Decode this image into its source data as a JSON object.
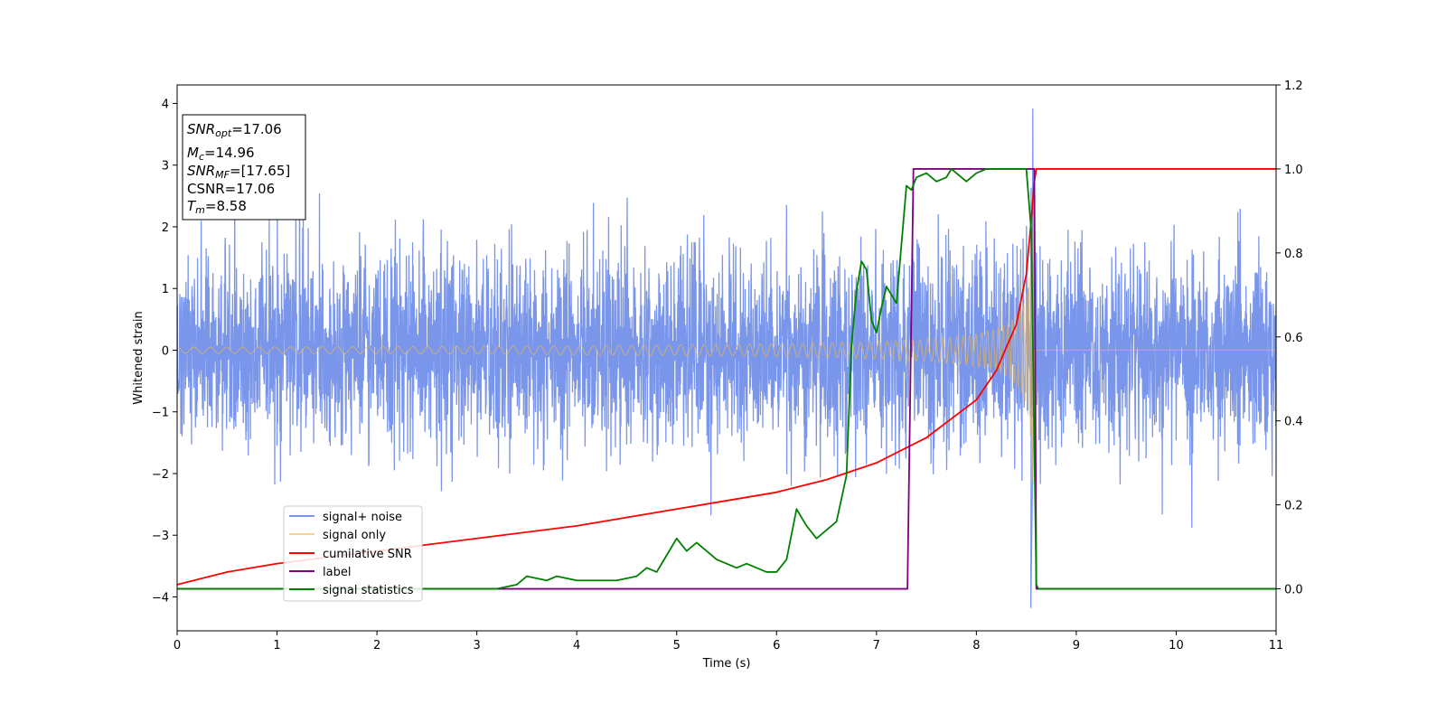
{
  "chart_data": {
    "type": "line",
    "xlabel": "Time (s)",
    "ylabel": "Whitened strain",
    "xlim": [
      0,
      11
    ],
    "ylim_left": [
      -4.55,
      4.3
    ],
    "ylim_right": [
      -0.1,
      1.2
    ],
    "x_ticks": [
      0,
      1,
      2,
      3,
      4,
      5,
      6,
      7,
      8,
      9,
      10,
      11
    ],
    "y_ticks_left": [
      -4,
      -3,
      -2,
      -1,
      0,
      1,
      2,
      3,
      4
    ],
    "y_ticks_right": [
      "0.0",
      "0.2",
      "0.4",
      "0.6",
      "0.8",
      "1.0",
      "1.2"
    ],
    "grid": false,
    "legend_position": "lower-left",
    "info_box": {
      "snr_opt_main": "SNR",
      "snr_opt_sub": "opt",
      "snr_opt_value": "=17.06",
      "mc_main": "M",
      "mc_sub": "c",
      "mc_value": "=14.96",
      "snr_mf_main": "SNR",
      "snr_mf_sub": "MF",
      "snr_mf_value": "=[17.65]",
      "csnr_text": "CSNR=17.06",
      "tm_main": "T",
      "tm_sub": "m",
      "tm_value": "=8.58"
    },
    "series": [
      {
        "name": "signal+ noise",
        "color": "#4169e1",
        "axis": "left",
        "merger_time": 8.58,
        "noise_std": 0.8,
        "peak_max": 3.92,
        "peak_min": -4.18
      },
      {
        "name": "signal only",
        "color": "#f4b942",
        "axis": "left",
        "start_amplitude": 0.05,
        "peak_amplitude": 2.2,
        "merger_time": 8.58
      },
      {
        "name": "cumilative SNR",
        "color": "#ff0000",
        "axis": "right",
        "x": [
          0,
          0.5,
          1,
          2,
          3,
          4,
          5,
          6,
          6.5,
          7,
          7.5,
          8,
          8.2,
          8.4,
          8.5,
          8.55,
          8.58,
          8.6,
          11
        ],
        "y": [
          0.01,
          0.04,
          0.06,
          0.09,
          0.12,
          0.15,
          0.19,
          0.23,
          0.26,
          0.3,
          0.36,
          0.45,
          0.52,
          0.63,
          0.75,
          0.88,
          0.97,
          1.0,
          1.0
        ]
      },
      {
        "name": "label",
        "color": "#800080",
        "axis": "right",
        "x": [
          0,
          7.31,
          7.37,
          8.58,
          8.6,
          11
        ],
        "y": [
          0,
          0,
          1,
          1,
          0,
          0
        ]
      },
      {
        "name": "signal statistics",
        "color": "#008000",
        "axis": "right",
        "x": [
          0,
          3.2,
          3.4,
          3.5,
          3.7,
          3.8,
          4.0,
          4.2,
          4.4,
          4.6,
          4.7,
          4.8,
          4.9,
          5.0,
          5.1,
          5.2,
          5.3,
          5.4,
          5.5,
          5.6,
          5.7,
          5.8,
          5.9,
          6.0,
          6.1,
          6.2,
          6.3,
          6.4,
          6.5,
          6.6,
          6.7,
          6.75,
          6.8,
          6.85,
          6.9,
          6.95,
          7.0,
          7.05,
          7.1,
          7.15,
          7.2,
          7.3,
          7.35,
          7.4,
          7.5,
          7.6,
          7.7,
          7.75,
          7.8,
          7.9,
          8.0,
          8.1,
          8.2,
          8.3,
          8.4,
          8.5,
          8.55,
          8.6,
          8.62,
          11
        ],
        "y": [
          0,
          0.0,
          0.01,
          0.03,
          0.02,
          0.03,
          0.02,
          0.02,
          0.02,
          0.03,
          0.05,
          0.04,
          0.08,
          0.12,
          0.09,
          0.11,
          0.09,
          0.07,
          0.06,
          0.05,
          0.06,
          0.05,
          0.04,
          0.04,
          0.07,
          0.19,
          0.15,
          0.12,
          0.14,
          0.16,
          0.27,
          0.58,
          0.71,
          0.78,
          0.76,
          0.64,
          0.61,
          0.67,
          0.72,
          0.7,
          0.68,
          0.96,
          0.95,
          0.98,
          0.99,
          0.97,
          0.98,
          1.0,
          0.99,
          0.97,
          0.99,
          1.0,
          1.0,
          1.0,
          1.0,
          1.0,
          0.85,
          0.01,
          0.0,
          0.0
        ]
      }
    ]
  }
}
